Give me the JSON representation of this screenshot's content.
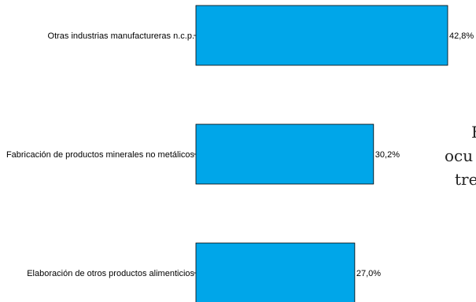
{
  "chart_data": {
    "type": "bar",
    "orientation": "horizontal",
    "categories": [
      "Otras industrias manufactureras n.c.p.",
      "Fabricación de productos minerales no metálicos",
      "Elaboración de otros productos alimenticios"
    ],
    "values": [
      42.8,
      30.2,
      27.0
    ],
    "value_labels": [
      "42,8%",
      "30,2%",
      "27,0%"
    ],
    "bar_color": "#00a6e9",
    "xlim": [
      0,
      45
    ],
    "grid": false,
    "legend": "none"
  },
  "side_text": [
    "E",
    "ocu",
    "tre"
  ]
}
